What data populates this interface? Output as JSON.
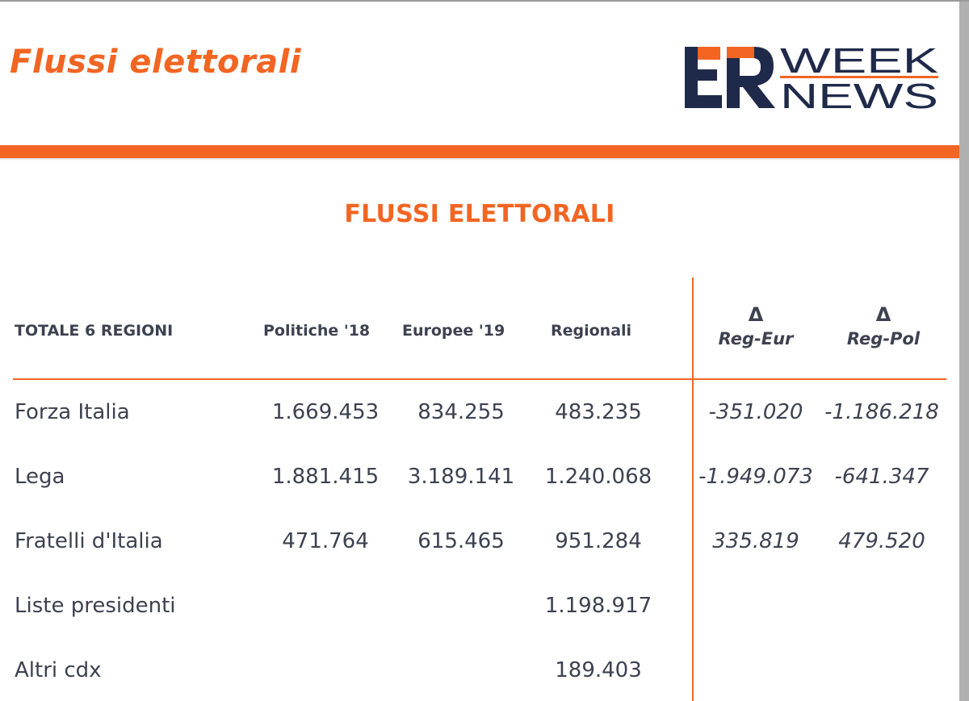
{
  "page": {
    "title": "Flussi elettorali",
    "section_title": "FLUSSI ELETTORALI"
  },
  "logo": {
    "mark": "ER",
    "line1": "WEEK",
    "line2": "NEWS",
    "colors": {
      "navy": "#1f2a4a",
      "orange": "#f26522"
    }
  },
  "table": {
    "headers": {
      "label": "TOTALE 6 REGIONI",
      "politiche": "Politiche '18",
      "europee": "Europee '19",
      "regionali": "Regionali",
      "delta_symbol": "Δ",
      "reg_eur": "Reg-Eur",
      "reg_pol": "Reg-Pol"
    },
    "rows": [
      {
        "label": "Forza Italia",
        "politiche": "1.669.453",
        "europee": "834.255",
        "regionali": "483.235",
        "reg_eur": "-351.020",
        "reg_pol": "-1.186.218"
      },
      {
        "label": "Lega",
        "politiche": "1.881.415",
        "europee": "3.189.141",
        "regionali": "1.240.068",
        "reg_eur": "-1.949.073",
        "reg_pol": "-641.347"
      },
      {
        "label": "Fratelli d'Italia",
        "politiche": "471.764",
        "europee": "615.465",
        "regionali": "951.284",
        "reg_eur": "335.819",
        "reg_pol": "479.520"
      },
      {
        "label": "Liste presidenti",
        "politiche": "",
        "europee": "",
        "regionali": "1.198.917",
        "reg_eur": "",
        "reg_pol": ""
      },
      {
        "label": "Altri cdx",
        "politiche": "",
        "europee": "",
        "regionali": "189.403",
        "reg_eur": "",
        "reg_pol": ""
      }
    ]
  },
  "colors": {
    "accent": "#f26522",
    "text": "#3d4150"
  }
}
